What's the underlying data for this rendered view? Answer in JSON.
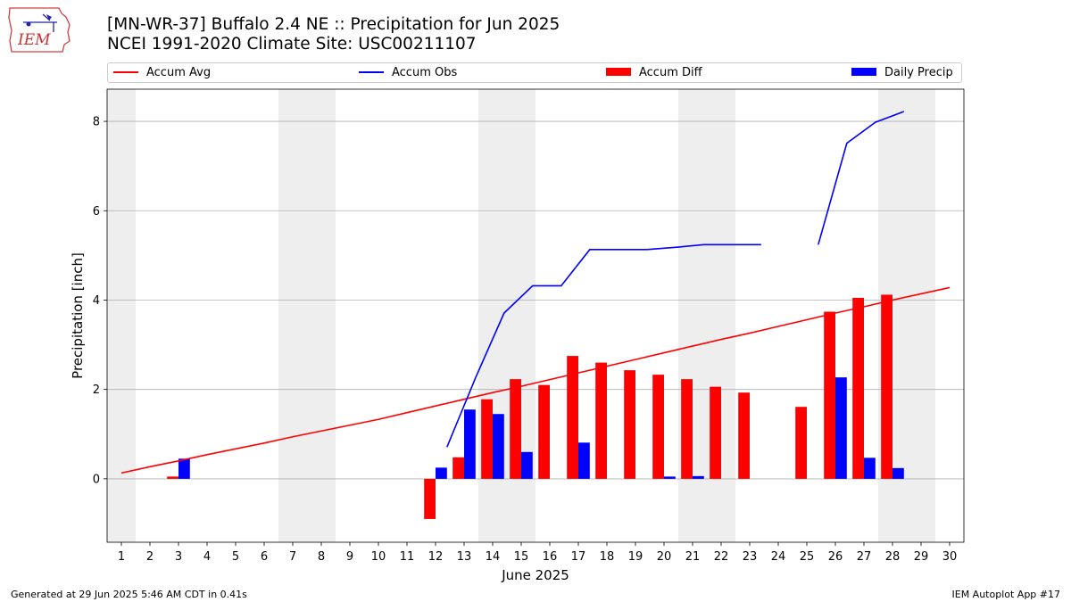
{
  "header": {
    "title_line1": "[MN-WR-37] Buffalo 2.4 NE :: Precipitation for Jun 2025",
    "title_line2": "NCEI 1991-2020 Climate Site: USC00211107",
    "logo_text": "IEM"
  },
  "legend": {
    "accum_avg": "Accum Avg",
    "accum_obs": "Accum Obs",
    "accum_diff": "Accum Diff",
    "daily_precip": "Daily Precip"
  },
  "footer": {
    "left": "Generated at 29 Jun 2025 5:46 AM CDT in 0.41s",
    "right": "IEM Autoplot App #17"
  },
  "colors": {
    "avg": "#ff0000",
    "obs": "#0000ff",
    "diff": "#ff0000",
    "daily": "#0000ff",
    "weekend_shade": "#eeeeee",
    "grid": "#b0b0b0"
  },
  "chart_data": {
    "type": "bar",
    "xlabel": "June 2025",
    "ylabel": "Precipitation [inch]",
    "xlim": [
      0.5,
      30.5
    ],
    "ylim": [
      -1.42,
      8.72
    ],
    "x_ticks": [
      1,
      2,
      3,
      4,
      5,
      6,
      7,
      8,
      9,
      10,
      11,
      12,
      13,
      14,
      15,
      16,
      17,
      18,
      19,
      20,
      21,
      22,
      23,
      24,
      25,
      26,
      27,
      28,
      29,
      30
    ],
    "y_ticks": [
      0,
      2,
      4,
      6,
      8
    ],
    "grid": "horizontal",
    "legend_position": "top",
    "weekend_shading": [
      [
        0.5,
        1.5
      ],
      [
        6.5,
        8.5
      ],
      [
        13.5,
        15.5
      ],
      [
        20.5,
        22.5
      ],
      [
        27.5,
        29.5
      ]
    ],
    "series": [
      {
        "name": "Accum Avg",
        "kind": "line",
        "x": [
          1,
          2,
          3,
          4,
          5,
          6,
          7,
          8,
          9,
          10,
          11,
          12,
          13,
          14,
          15,
          16,
          17,
          18,
          19,
          20,
          21,
          22,
          23,
          24,
          25,
          26,
          27,
          28,
          29,
          30
        ],
        "values": [
          0.13,
          0.27,
          0.4,
          0.54,
          0.67,
          0.8,
          0.94,
          1.07,
          1.2,
          1.33,
          1.48,
          1.63,
          1.78,
          1.93,
          2.07,
          2.22,
          2.37,
          2.52,
          2.67,
          2.82,
          2.97,
          3.12,
          3.26,
          3.41,
          3.56,
          3.71,
          3.85,
          4.0,
          4.14,
          4.28
        ]
      },
      {
        "name": "Accum Obs",
        "kind": "line",
        "x": [
          12,
          13,
          14,
          15,
          16,
          17,
          18,
          19,
          20,
          21,
          22,
          23,
          25,
          26,
          27,
          28
        ],
        "values": [
          0.71,
          2.26,
          3.71,
          4.32,
          4.32,
          5.13,
          5.13,
          5.13,
          5.18,
          5.24,
          5.24,
          5.24,
          5.24,
          7.51,
          7.98,
          8.22
        ],
        "segments": [
          [
            12,
            23
          ],
          [
            25,
            28
          ]
        ]
      },
      {
        "name": "Accum Diff",
        "kind": "bar",
        "x": [
          3,
          12,
          13,
          14,
          15,
          16,
          17,
          18,
          19,
          20,
          21,
          22,
          23,
          25,
          26,
          27,
          28
        ],
        "values": [
          0.05,
          -0.9,
          0.48,
          1.78,
          2.23,
          2.1,
          2.75,
          2.6,
          2.43,
          2.33,
          2.23,
          2.06,
          1.93,
          1.61,
          3.74,
          4.05,
          4.12
        ]
      },
      {
        "name": "Daily Precip",
        "kind": "bar",
        "x": [
          3,
          12,
          13,
          14,
          15,
          17,
          20,
          21,
          26,
          27,
          28
        ],
        "values": [
          0.45,
          0.25,
          1.55,
          1.45,
          0.6,
          0.81,
          0.05,
          0.06,
          2.27,
          0.47,
          0.24
        ]
      }
    ]
  }
}
